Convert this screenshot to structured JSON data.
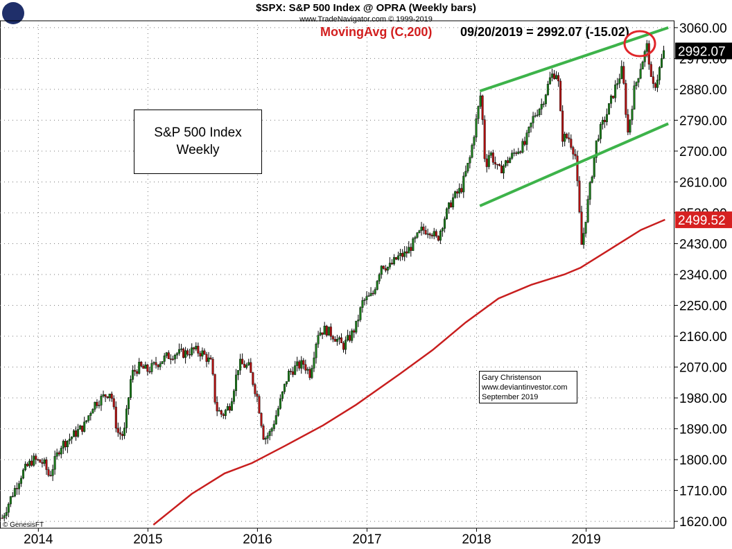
{
  "header": {
    "title": "$SPX:  S&P 500 Index @ OPRA  (Weekly bars)",
    "source": "www.TradeNavigator.com © 1999-2019",
    "ma_label": "MovingAvg (C,200)",
    "ma_value": "09/20/2019 = 2992.07 (-15.02)"
  },
  "annotations": {
    "title_box_line1": "S&P 500 Index",
    "title_box_line2": "Weekly",
    "author_line1": "Gary Christenson",
    "author_line2": "www.deviantinvestor.com",
    "author_line3": "September 2019",
    "watermark": "© GenesisFT"
  },
  "colors": {
    "up_candle": "#1a7a1a",
    "down_candle": "#b01010",
    "moving_average": "#c81e1e",
    "channel": "#3db34a",
    "circle": "#e0262a",
    "last_price_bg": "#000000",
    "ma_tag_bg": "#d62020"
  },
  "chart_data": {
    "type": "candlestick",
    "title": "$SPX:  S&P 500 Index @ OPRA  (Weekly bars)",
    "x_tick_labels": [
      "2014",
      "2015",
      "2016",
      "2017",
      "2018",
      "2019"
    ],
    "y_tick_labels": [
      "1620.00",
      "1710.00",
      "1800.00",
      "1890.00",
      "1980.00",
      "2070.00",
      "2160.00",
      "2250.00",
      "2340.00",
      "2430.00",
      "2520.00",
      "2610.00",
      "2700.00",
      "2790.00",
      "2880.00",
      "2970.00",
      "3060.00"
    ],
    "ylim": [
      1600,
      3080
    ],
    "xlim": [
      2013.65,
      2019.8
    ],
    "last_price": 2992.07,
    "last_price_label": "2992.07",
    "ma_last": 2499.52,
    "ma_last_label": "2499.52",
    "price_path": [
      [
        2013.67,
        1630
      ],
      [
        2013.75,
        1690
      ],
      [
        2013.85,
        1760
      ],
      [
        2013.95,
        1800
      ],
      [
        2014.05,
        1790
      ],
      [
        2014.1,
        1750
      ],
      [
        2014.2,
        1840
      ],
      [
        2014.28,
        1860
      ],
      [
        2014.35,
        1880
      ],
      [
        2014.42,
        1900
      ],
      [
        2014.5,
        1960
      ],
      [
        2014.58,
        1980
      ],
      [
        2014.66,
        2000
      ],
      [
        2014.72,
        1880
      ],
      [
        2014.78,
        1870
      ],
      [
        2014.85,
        2050
      ],
      [
        2014.92,
        2070
      ],
      [
        2015.0,
        2060
      ],
      [
        2015.08,
        2080
      ],
      [
        2015.17,
        2100
      ],
      [
        2015.25,
        2110
      ],
      [
        2015.33,
        2110
      ],
      [
        2015.42,
        2120
      ],
      [
        2015.5,
        2110
      ],
      [
        2015.58,
        2080
      ],
      [
        2015.62,
        1950
      ],
      [
        2015.68,
        1930
      ],
      [
        2015.75,
        1960
      ],
      [
        2015.83,
        2080
      ],
      [
        2015.92,
        2070
      ],
      [
        2016.0,
        1980
      ],
      [
        2016.06,
        1860
      ],
      [
        2016.12,
        1880
      ],
      [
        2016.2,
        1960
      ],
      [
        2016.28,
        2050
      ],
      [
        2016.35,
        2070
      ],
      [
        2016.42,
        2080
      ],
      [
        2016.48,
        2050
      ],
      [
        2016.55,
        2170
      ],
      [
        2016.62,
        2180
      ],
      [
        2016.7,
        2160
      ],
      [
        2016.78,
        2130
      ],
      [
        2016.85,
        2160
      ],
      [
        2016.9,
        2190
      ],
      [
        2016.96,
        2260
      ],
      [
        2017.05,
        2280
      ],
      [
        2017.13,
        2370
      ],
      [
        2017.2,
        2360
      ],
      [
        2017.28,
        2390
      ],
      [
        2017.35,
        2400
      ],
      [
        2017.42,
        2430
      ],
      [
        2017.5,
        2470
      ],
      [
        2017.58,
        2470
      ],
      [
        2017.64,
        2440
      ],
      [
        2017.7,
        2500
      ],
      [
        2017.78,
        2560
      ],
      [
        2017.86,
        2590
      ],
      [
        2017.94,
        2680
      ],
      [
        2018.04,
        2870
      ],
      [
        2018.08,
        2650
      ],
      [
        2018.12,
        2700
      ],
      [
        2018.2,
        2640
      ],
      [
        2018.28,
        2670
      ],
      [
        2018.36,
        2700
      ],
      [
        2018.44,
        2720
      ],
      [
        2018.52,
        2800
      ],
      [
        2018.6,
        2840
      ],
      [
        2018.68,
        2920
      ],
      [
        2018.74,
        2930
      ],
      [
        2018.78,
        2740
      ],
      [
        2018.84,
        2740
      ],
      [
        2018.9,
        2690
      ],
      [
        2018.96,
        2420
      ],
      [
        2019.02,
        2560
      ],
      [
        2019.1,
        2740
      ],
      [
        2019.18,
        2800
      ],
      [
        2019.26,
        2880
      ],
      [
        2019.33,
        2940
      ],
      [
        2019.38,
        2750
      ],
      [
        2019.44,
        2880
      ],
      [
        2019.5,
        2950
      ],
      [
        2019.56,
        3010
      ],
      [
        2019.6,
        2880
      ],
      [
        2019.64,
        2900
      ],
      [
        2019.7,
        2980
      ],
      [
        2019.72,
        2992
      ]
    ],
    "ma_200": [
      [
        2015.05,
        1610
      ],
      [
        2015.4,
        1700
      ],
      [
        2015.7,
        1760
      ],
      [
        2015.95,
        1790
      ],
      [
        2016.25,
        1840
      ],
      [
        2016.6,
        1900
      ],
      [
        2016.9,
        1960
      ],
      [
        2017.3,
        2050
      ],
      [
        2017.6,
        2120
      ],
      [
        2017.9,
        2200
      ],
      [
        2018.2,
        2270
      ],
      [
        2018.5,
        2310
      ],
      [
        2018.8,
        2340
      ],
      [
        2018.95,
        2360
      ],
      [
        2019.2,
        2410
      ],
      [
        2019.5,
        2470
      ],
      [
        2019.72,
        2500
      ]
    ],
    "channel_upper": [
      [
        2018.03,
        2875
      ],
      [
        2019.75,
        3060
      ]
    ],
    "channel_lower": [
      [
        2018.03,
        2540
      ],
      [
        2019.75,
        2780
      ]
    ]
  }
}
